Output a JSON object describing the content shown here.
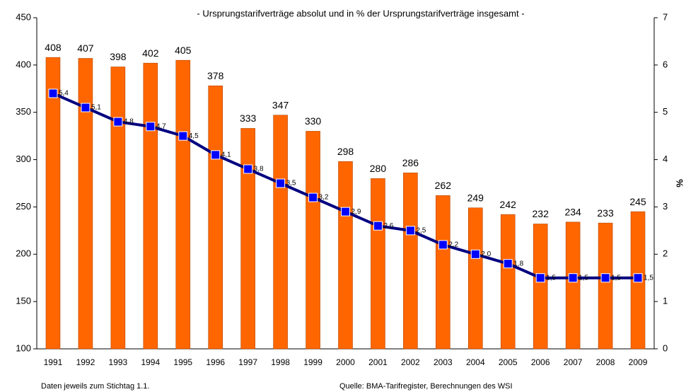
{
  "chart_data": {
    "type": "bar-line",
    "title": "- Ursprungstarifverträge absolut und in % der Ursprungstarifverträge insgesamt -",
    "y2_label": "%",
    "notes": [
      "Daten jeweils zum Stichtag 1.1.",
      "Quelle: BMA-Tarifregister, Berechnungen des WSI"
    ],
    "categories": [
      "1991",
      "1992",
      "1993",
      "1994",
      "1995",
      "1996",
      "1997",
      "1998",
      "1999",
      "2000",
      "2001",
      "2002",
      "2003",
      "2004",
      "2005",
      "2006",
      "2007",
      "2008",
      "2009"
    ],
    "series": [
      {
        "type": "bar",
        "color": "#ff6600",
        "values": [
          408,
          407,
          398,
          402,
          405,
          378,
          333,
          347,
          330,
          298,
          280,
          286,
          262,
          249,
          242,
          232,
          234,
          233,
          245
        ]
      },
      {
        "type": "line",
        "axis": "y2",
        "color": "#000080",
        "marker_color": "#0000ff",
        "values": [
          5.4,
          5.1,
          4.8,
          4.7,
          4.5,
          4.1,
          3.8,
          3.5,
          3.2,
          2.9,
          2.6,
          2.5,
          2.2,
          2.0,
          1.8,
          1.5,
          1.5,
          1.5,
          1.5
        ],
        "value_labels": [
          "5,4",
          "5,1",
          "4,8",
          "4,7",
          "4,5",
          "4,1",
          "3,8",
          "3,5",
          "3,2",
          "2,9",
          "2,6",
          "2,5",
          "2,2",
          "2,0",
          "1,8",
          "1,5",
          "1,5",
          "1,5",
          "1,5"
        ]
      }
    ],
    "ylim": [
      100,
      450
    ],
    "yticks": [
      100,
      150,
      200,
      250,
      300,
      350,
      400,
      450
    ],
    "y2lim": [
      0,
      7
    ],
    "y2ticks": [
      0,
      1,
      2,
      3,
      4,
      5,
      6,
      7
    ]
  }
}
